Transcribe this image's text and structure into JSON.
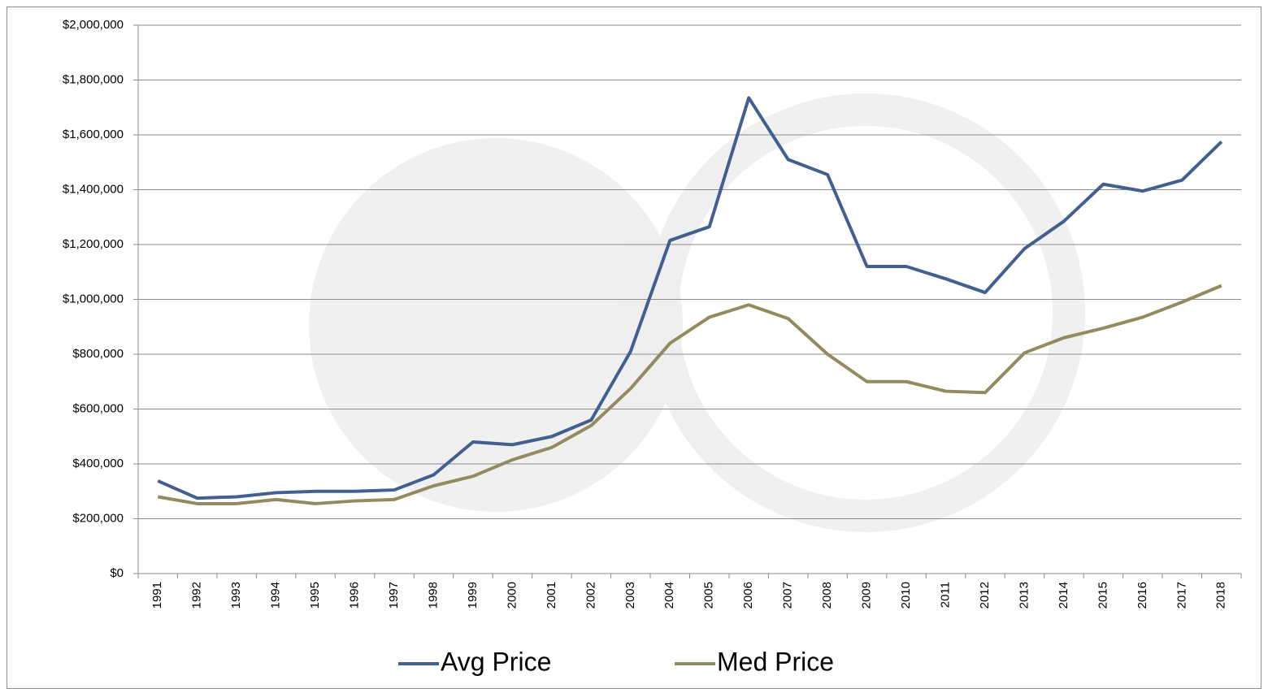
{
  "chart_data": {
    "type": "line",
    "categories": [
      "1991",
      "1992",
      "1993",
      "1994",
      "1995",
      "1996",
      "1997",
      "1998",
      "1999",
      "2000",
      "2001",
      "2002",
      "2003",
      "2004",
      "2005",
      "2006",
      "2007",
      "2008",
      "2009",
      "2010",
      "2011",
      "2012",
      "2013",
      "2014",
      "2015",
      "2016",
      "2017",
      "2018"
    ],
    "series": [
      {
        "name": "Avg Price",
        "color": "#41608f",
        "values": [
          338000,
          275000,
          280000,
          295000,
          300000,
          300000,
          305000,
          360000,
          480000,
          470000,
          500000,
          560000,
          810000,
          1215000,
          1265000,
          1735000,
          1510000,
          1455000,
          1120000,
          1120000,
          1075000,
          1025000,
          1185000,
          1285000,
          1420000,
          1395000,
          1435000,
          1575000
        ]
      },
      {
        "name": "Med Price",
        "color": "#948a5f",
        "values": [
          280000,
          255000,
          255000,
          270000,
          255000,
          265000,
          270000,
          320000,
          355000,
          415000,
          460000,
          540000,
          675000,
          840000,
          935000,
          980000,
          930000,
          800000,
          700000,
          700000,
          665000,
          660000,
          805000,
          860000,
          895000,
          935000,
          990000,
          1050000
        ]
      }
    ],
    "ylim": [
      0,
      2000000
    ],
    "yticks": [
      {
        "value": 0,
        "label": "$0"
      },
      {
        "value": 200000,
        "label": "$200,000"
      },
      {
        "value": 400000,
        "label": "$400,000"
      },
      {
        "value": 600000,
        "label": "$600,000"
      },
      {
        "value": 800000,
        "label": "$800,000"
      },
      {
        "value": 1000000,
        "label": "$1,000,000"
      },
      {
        "value": 1200000,
        "label": "$1,200,000"
      },
      {
        "value": 1400000,
        "label": "$1,400,000"
      },
      {
        "value": 1600000,
        "label": "$1,600,000"
      },
      {
        "value": 1800000,
        "label": "$1,800,000"
      },
      {
        "value": 2000000,
        "label": "$2,000,000"
      }
    ],
    "grid": true,
    "legend": "bottom"
  }
}
